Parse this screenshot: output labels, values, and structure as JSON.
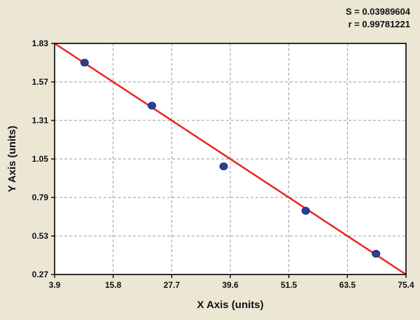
{
  "chart_data": {
    "type": "scatter",
    "title": "",
    "xlabel": "X Axis (units)",
    "ylabel": "Y Axis (units)",
    "x_ticks": [
      "3.9",
      "15.8",
      "27.7",
      "39.6",
      "51.5",
      "63.5",
      "75.4"
    ],
    "y_ticks": [
      "0.27",
      "0.53",
      "0.79",
      "1.05",
      "1.31",
      "1.57",
      "1.83"
    ],
    "xlim": [
      3.9,
      75.4
    ],
    "ylim": [
      0.27,
      1.83
    ],
    "grid": "dashed",
    "legend": "none",
    "points": [
      {
        "x": 10.0,
        "y": 1.7
      },
      {
        "x": 23.7,
        "y": 1.41
      },
      {
        "x": 38.3,
        "y": 1.0
      },
      {
        "x": 55.0,
        "y": 0.7
      },
      {
        "x": 69.3,
        "y": 0.41
      }
    ],
    "fit_line": {
      "x1": 3.9,
      "y1": 1.83,
      "x2": 75.4,
      "y2": 0.27
    },
    "annotations": [
      "S = 0.03989604",
      "r = 0.99781221"
    ],
    "colors": {
      "background": "#ece7d5",
      "plot_bg": "#ffffff",
      "line": "#ee2222",
      "point": "#2b3f96",
      "grid": "#9a9a9a",
      "axis": "#000000",
      "text": "#111111"
    }
  }
}
